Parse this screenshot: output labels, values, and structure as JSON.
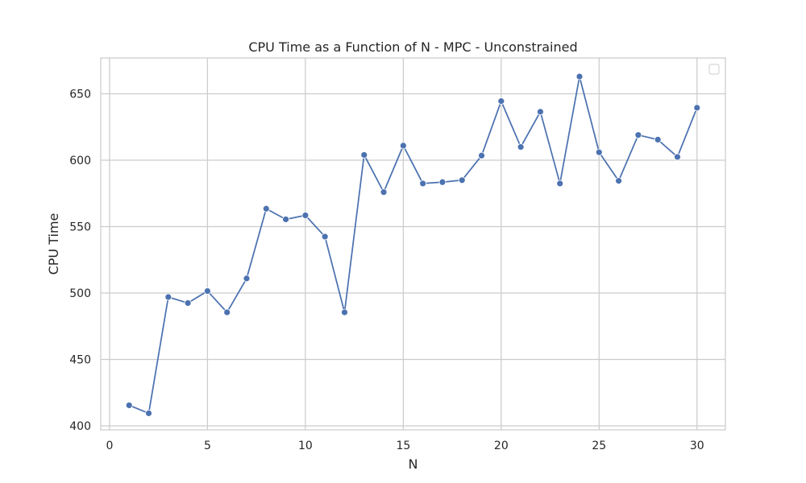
{
  "chart_data": {
    "type": "line",
    "title": "CPU Time as a Function of N - MPC - Unconstrained",
    "xlabel": "N",
    "ylabel": "CPU Time",
    "xlim": [
      -0.45,
      31.45
    ],
    "ylim": [
      397,
      677
    ],
    "xticks": [
      0,
      5,
      10,
      15,
      20,
      25,
      30
    ],
    "yticks": [
      400,
      450,
      500,
      550,
      600,
      650
    ],
    "grid": true,
    "legend": "top-right, empty",
    "colors": {
      "series": "#4c72b0",
      "grid": "#cccccc",
      "frame": "#cccccc",
      "background": "#ffffff",
      "text": "#262626"
    },
    "series": [
      {
        "x": [
          1,
          2,
          3,
          4,
          5,
          6,
          7,
          8,
          9,
          10,
          11,
          12,
          13,
          14,
          15,
          16,
          17,
          18,
          19,
          20,
          21,
          22,
          23,
          24,
          25,
          26,
          27,
          28,
          29,
          30
        ],
        "values": [
          415.5,
          409.5,
          497,
          492.5,
          501.5,
          485.5,
          511,
          563.5,
          555.5,
          558.5,
          542.5,
          485.5,
          604,
          576,
          611,
          582.5,
          583.5,
          585,
          603.5,
          644.5,
          610,
          636.5,
          582.5,
          663,
          606,
          584.5,
          619,
          615.5,
          602.5,
          639.5
        ]
      }
    ]
  }
}
